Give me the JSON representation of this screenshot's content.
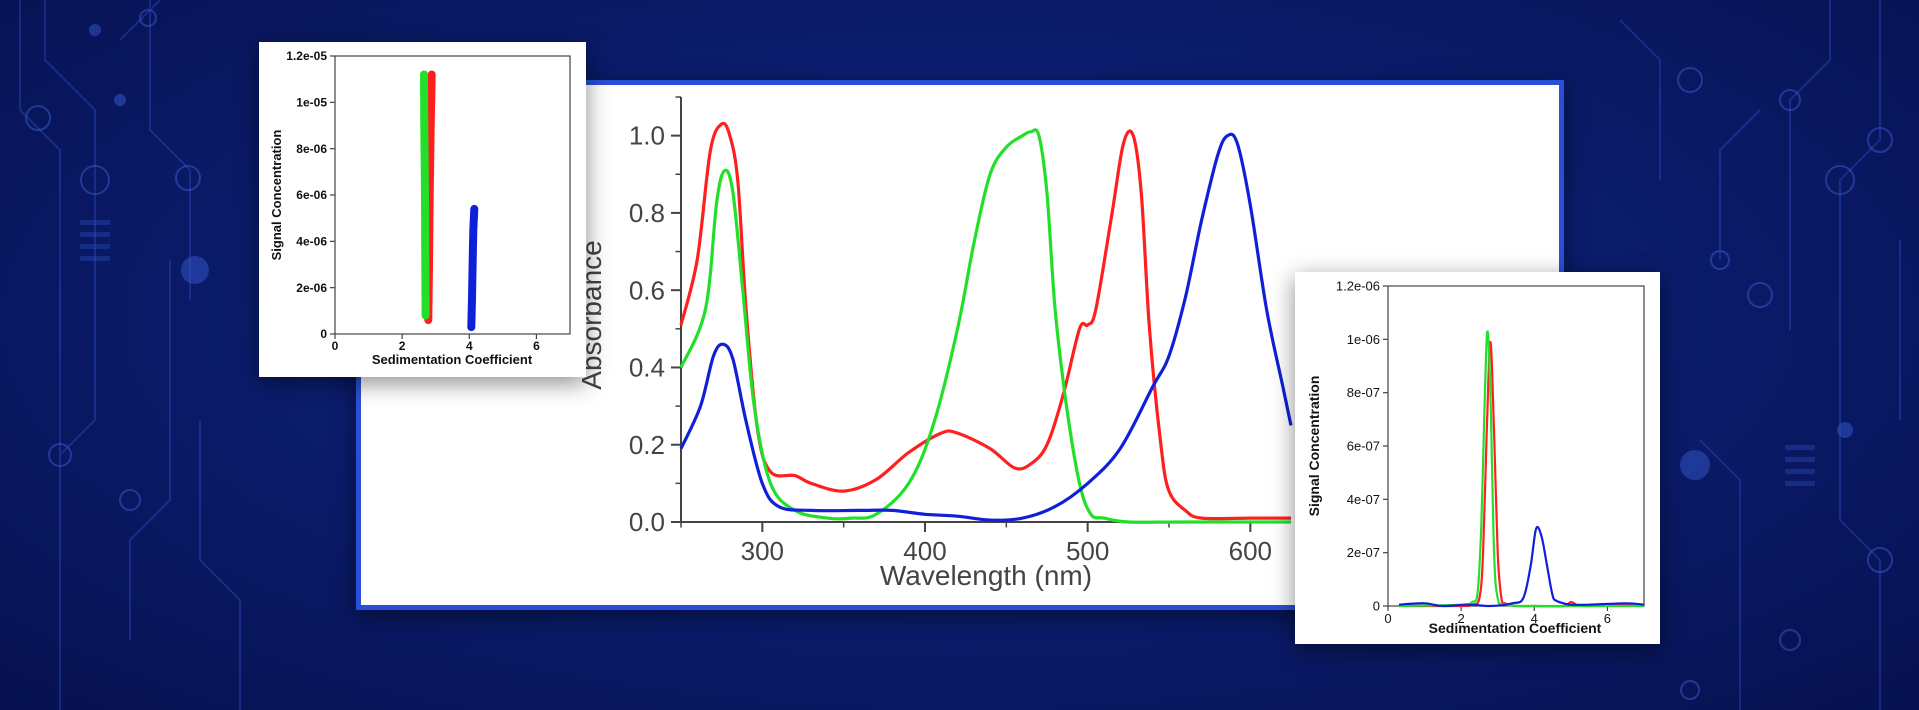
{
  "colors": {
    "red": "#ff1f1f",
    "green": "#22e02a",
    "blue": "#1020d8",
    "axis": "#444444"
  },
  "chart_data": [
    {
      "type": "line",
      "xlabel": "Wavelength (nm)",
      "ylabel": "Absorbance",
      "xlim": [
        250,
        625
      ],
      "ylim": [
        0,
        1.1
      ],
      "x_ticks": [
        "300",
        "400",
        "500",
        "600"
      ],
      "y_ticks": [
        "0.0",
        "0.2",
        "0.4",
        "0.6",
        "0.8",
        "1.0"
      ],
      "series": [
        {
          "color": "red",
          "x": [
            250,
            260,
            268,
            275,
            280,
            285,
            290,
            297,
            305,
            320,
            330,
            350,
            370,
            390,
            410,
            420,
            440,
            455,
            465,
            475,
            485,
            495,
            500,
            505,
            515,
            522,
            528,
            533,
            538,
            545,
            550,
            560,
            570,
            600,
            625
          ],
          "y": [
            0.51,
            0.68,
            0.96,
            1.03,
            1.0,
            0.88,
            0.55,
            0.24,
            0.13,
            0.12,
            0.1,
            0.08,
            0.11,
            0.18,
            0.23,
            0.23,
            0.19,
            0.14,
            0.15,
            0.2,
            0.33,
            0.5,
            0.51,
            0.55,
            0.8,
            0.98,
            1.0,
            0.85,
            0.5,
            0.2,
            0.08,
            0.03,
            0.01,
            0.01,
            0.01
          ]
        },
        {
          "color": "green",
          "x": [
            250,
            265,
            272,
            277,
            282,
            288,
            295,
            305,
            320,
            340,
            355,
            370,
            390,
            405,
            420,
            430,
            440,
            450,
            460,
            465,
            470,
            475,
            480,
            487,
            495,
            502,
            510,
            525,
            560,
            625
          ],
          "y": [
            0.4,
            0.55,
            0.83,
            0.91,
            0.85,
            0.6,
            0.3,
            0.1,
            0.03,
            0.01,
            0.01,
            0.02,
            0.1,
            0.25,
            0.5,
            0.72,
            0.9,
            0.97,
            1.0,
            1.01,
            1.0,
            0.85,
            0.55,
            0.3,
            0.1,
            0.02,
            0.01,
            0.0,
            0.0,
            0.0
          ]
        },
        {
          "color": "blue",
          "x": [
            250,
            262,
            270,
            276,
            282,
            290,
            300,
            310,
            330,
            360,
            380,
            400,
            420,
            440,
            460,
            480,
            500,
            520,
            540,
            550,
            560,
            570,
            580,
            586,
            592,
            600,
            610,
            620,
            625
          ],
          "y": [
            0.19,
            0.3,
            0.43,
            0.46,
            0.42,
            0.26,
            0.1,
            0.04,
            0.03,
            0.03,
            0.03,
            0.02,
            0.015,
            0.005,
            0.01,
            0.04,
            0.1,
            0.19,
            0.35,
            0.43,
            0.58,
            0.78,
            0.95,
            1.0,
            0.98,
            0.82,
            0.55,
            0.35,
            0.25
          ]
        }
      ]
    },
    {
      "type": "scatter",
      "xlabel": "Sedimentation Coefficient",
      "ylabel": "Signal Concentration",
      "xlim": [
        0,
        7
      ],
      "ylim": [
        0,
        1.2e-05
      ],
      "x_ticks": [
        "0",
        "2",
        "4",
        "6"
      ],
      "y_ticks": [
        "0",
        "2e-06",
        "4e-06",
        "6e-06",
        "8e-06",
        "1e-05",
        "1.2e-05"
      ],
      "series": [
        {
          "color": "red",
          "x": [
            2.78,
            2.8,
            2.82,
            2.85,
            2.88
          ],
          "y": [
            6e-07,
            3e-06,
            6e-06,
            9e-06,
            1.12e-05
          ]
        },
        {
          "color": "green",
          "x": [
            2.7,
            2.69,
            2.68,
            2.66,
            2.65
          ],
          "y": [
            8e-07,
            3e-06,
            6e-06,
            9e-06,
            1.12e-05
          ]
        },
        {
          "color": "blue",
          "x": [
            4.06,
            4.08,
            4.1,
            4.12,
            4.15
          ],
          "y": [
            3e-07,
            1.5e-06,
            3e-06,
            4.5e-06,
            5.4e-06
          ]
        }
      ]
    },
    {
      "type": "line",
      "xlabel": "Sedimentation Coefficient",
      "ylabel": "Signal Concentration",
      "xlim": [
        0,
        7
      ],
      "ylim": [
        0,
        1.2e-06
      ],
      "x_ticks": [
        "0",
        "2",
        "4",
        "6"
      ],
      "y_ticks": [
        "0",
        "2e-07",
        "4e-07",
        "6e-07",
        "8e-07",
        "1e-06",
        "1.2e-06"
      ],
      "series": [
        {
          "color": "red",
          "x": [
            0.3,
            2.0,
            2.3,
            2.5,
            2.6,
            2.7,
            2.8,
            2.9,
            3.0,
            3.1,
            3.2,
            3.5,
            4.0,
            4.8,
            5.0,
            5.2,
            5.5,
            6.0,
            7.0
          ],
          "y": [
            0,
            0,
            5e-09,
            3e-08,
            2e-07,
            6.5e-07,
            9.9e-07,
            6.5e-07,
            2e-07,
            3e-08,
            1e-08,
            0,
            0,
            0,
            1.5e-08,
            2e-09,
            0,
            5e-09,
            0
          ]
        },
        {
          "color": "green",
          "x": [
            0.3,
            2.0,
            2.3,
            2.45,
            2.55,
            2.65,
            2.72,
            2.8,
            2.9,
            3.0,
            3.2,
            4.0,
            7.0
          ],
          "y": [
            0,
            5e-09,
            1.5e-08,
            5e-08,
            3e-07,
            8e-07,
            1.03e-06,
            8e-07,
            2e-07,
            3e-08,
            5e-09,
            0,
            0
          ]
        },
        {
          "color": "blue",
          "x": [
            0.3,
            1.0,
            1.5,
            2.2,
            2.8,
            3.4,
            3.7,
            3.9,
            4.05,
            4.2,
            4.35,
            4.5,
            4.6,
            4.8,
            5.0,
            5.5,
            6.5,
            7.0
          ],
          "y": [
            5e-09,
            1e-08,
            0,
            5e-09,
            0,
            1e-08,
            3e-08,
            1.5e-07,
            2.9e-07,
            2.6e-07,
            1.5e-07,
            4e-08,
            2e-08,
            1e-08,
            5e-09,
            5e-09,
            1e-08,
            5e-09
          ]
        }
      ]
    }
  ]
}
